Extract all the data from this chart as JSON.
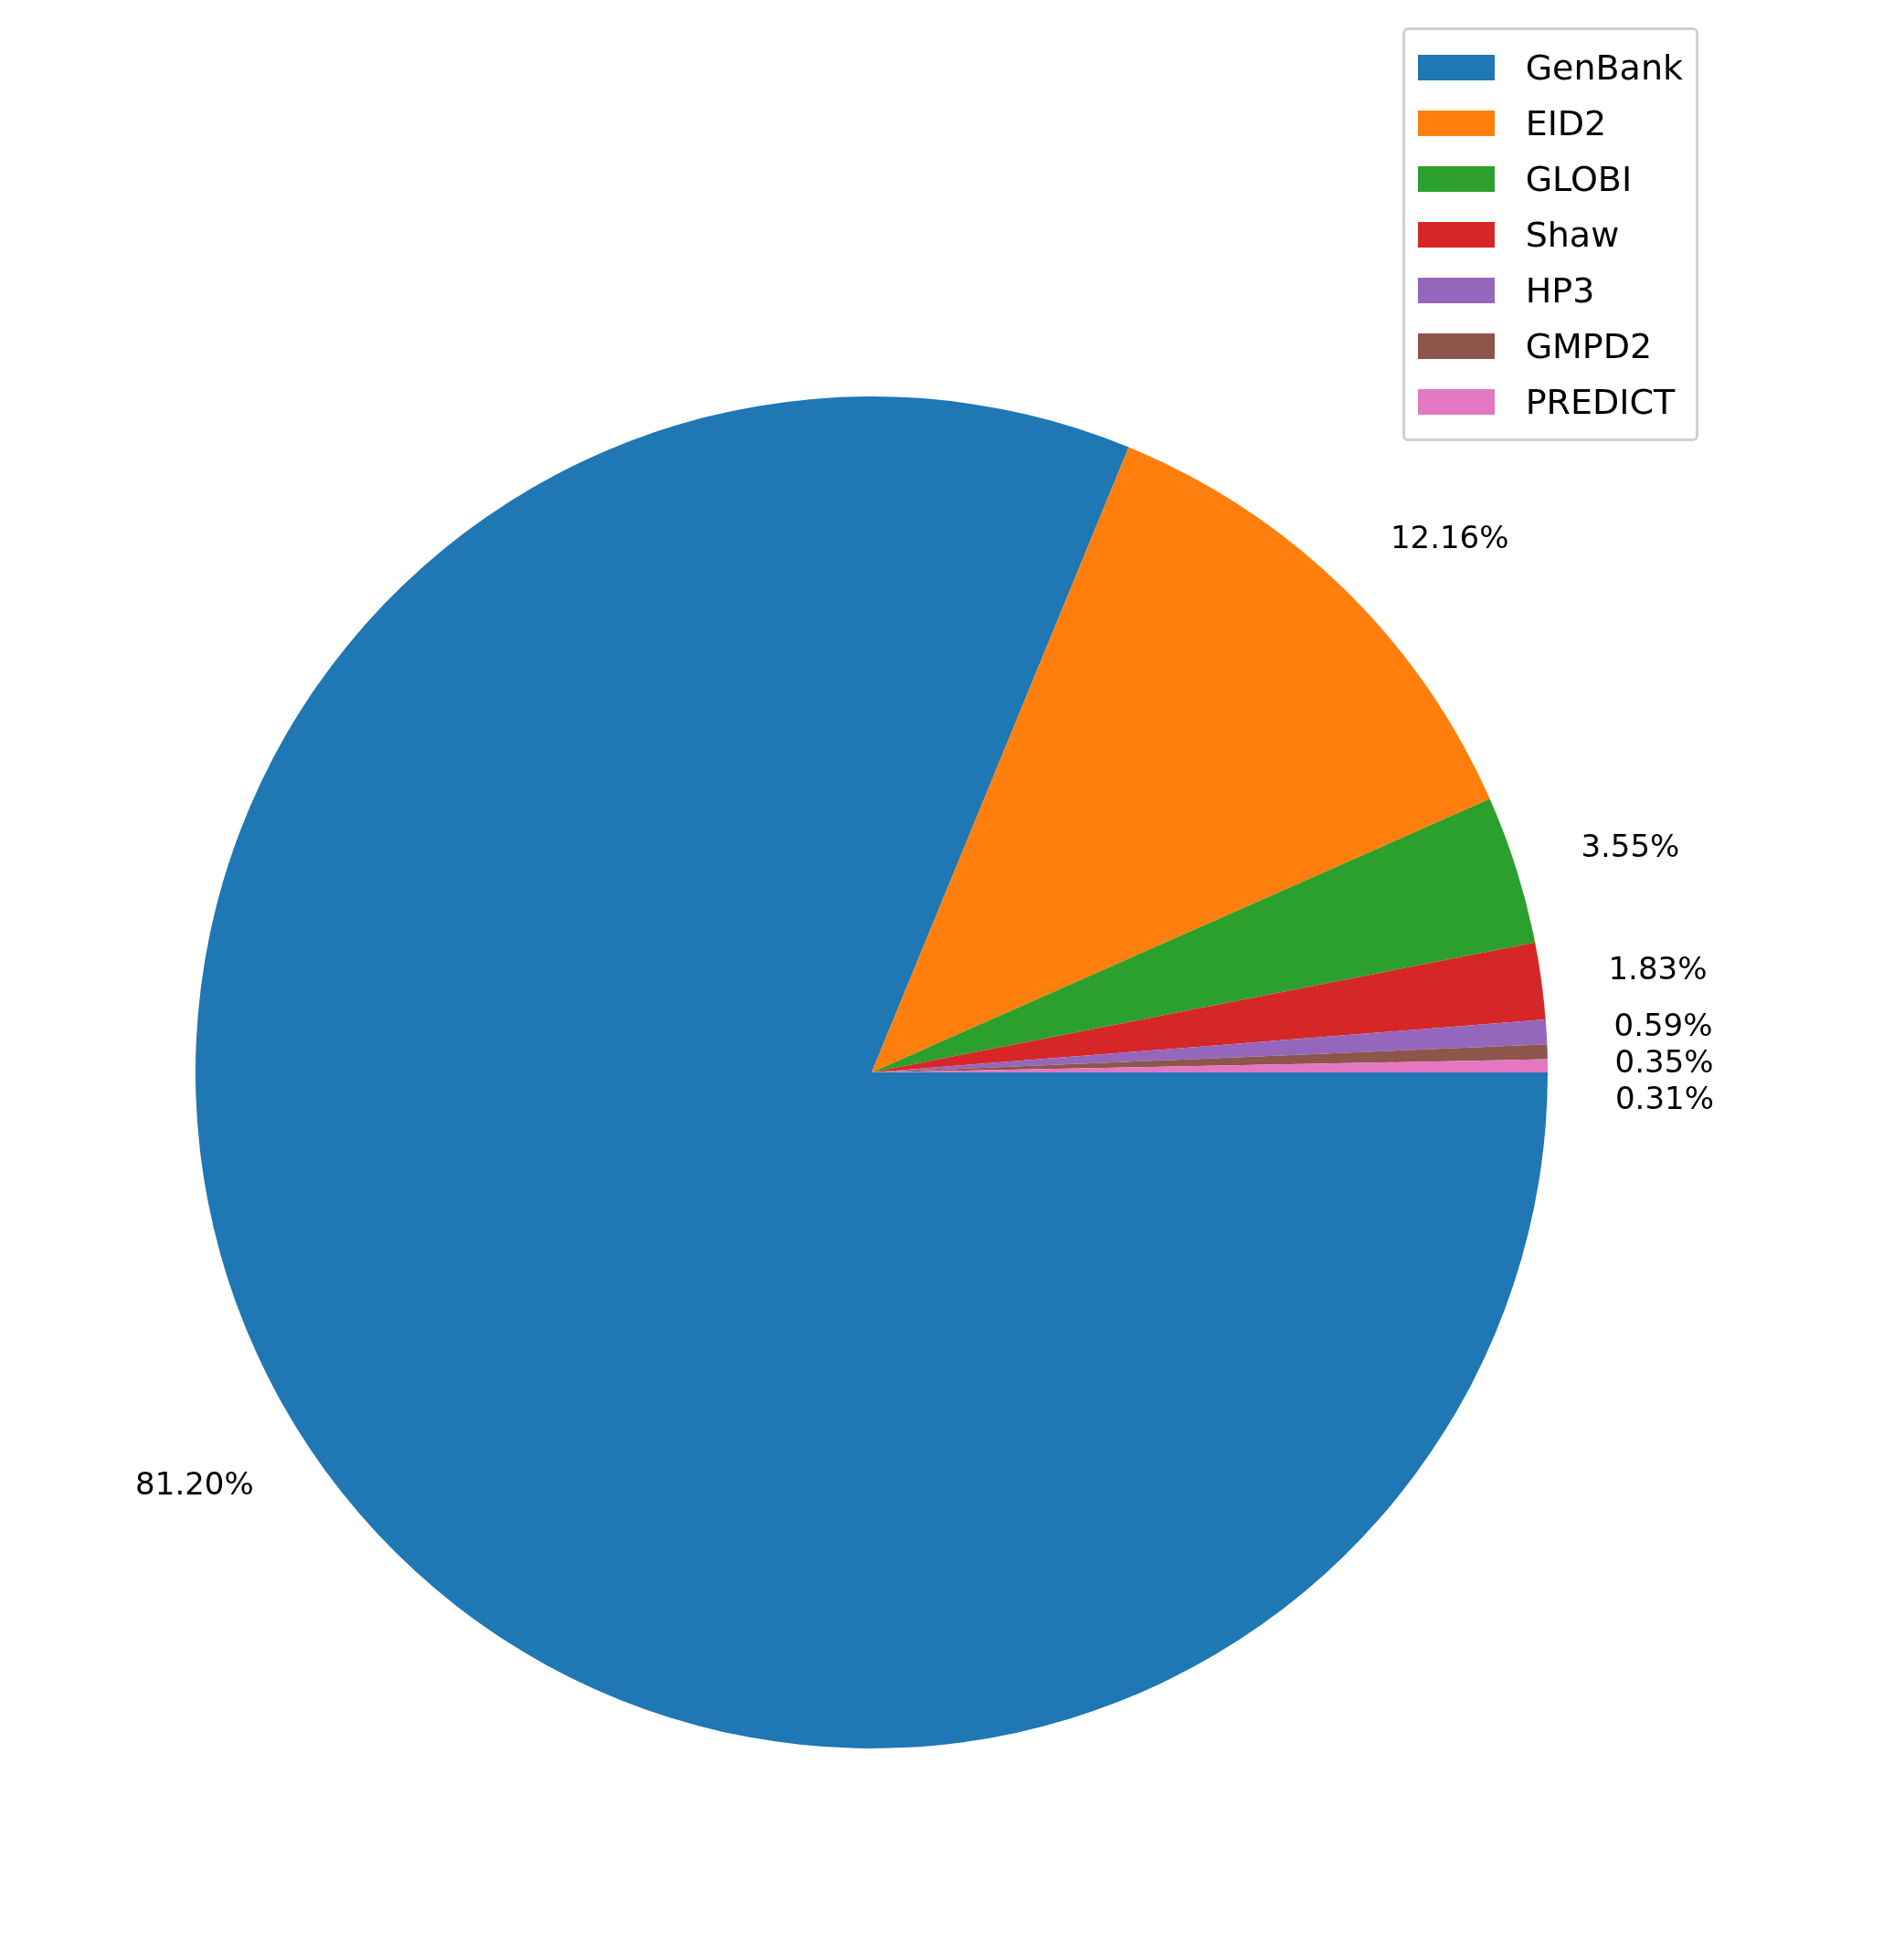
{
  "chart_data": {
    "type": "pie",
    "categories": [
      "GenBank",
      "EID2",
      "GLOBI",
      "Shaw",
      "HP3",
      "GMPD2",
      "PREDICT"
    ],
    "values": [
      81.2,
      12.16,
      3.55,
      1.83,
      0.59,
      0.35,
      0.31
    ],
    "colors": [
      "#1f77b4",
      "#ff7f0e",
      "#2ca02c",
      "#d62728",
      "#9467bd",
      "#8c564b",
      "#e377c2"
    ],
    "value_labels": [
      "81.20%",
      "12.16%",
      "3.55%",
      "1.83%",
      "0.59%",
      "0.35%",
      "0.31%"
    ],
    "legend": "top right"
  }
}
